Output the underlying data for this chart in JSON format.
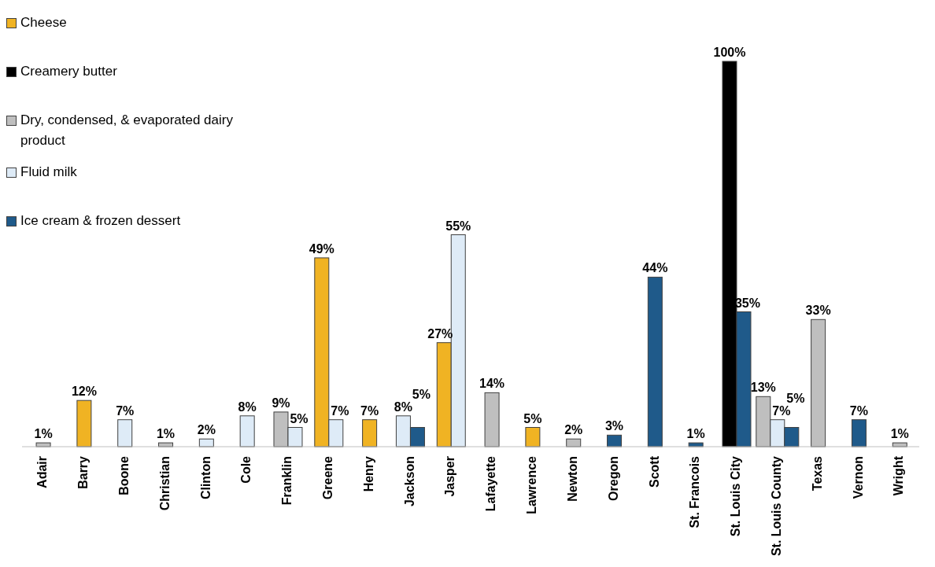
{
  "chart_data": {
    "type": "bar",
    "categories": [
      "Adair",
      "Barry",
      "Boone",
      "Christian",
      "Clinton",
      "Cole",
      "Franklin",
      "Greene",
      "Henry",
      "Jackson",
      "Jasper",
      "Lafayette",
      "Lawrence",
      "Newton",
      "Oregon",
      "Scott",
      "St. Francois",
      "St. Louis City",
      "St. Louis County",
      "Texas",
      "Vernon",
      "Wright"
    ],
    "series": [
      {
        "name": "Cheese",
        "color": "#f0b323",
        "values": [
          null,
          12,
          null,
          null,
          null,
          null,
          null,
          49,
          7,
          null,
          27,
          null,
          5,
          null,
          null,
          null,
          null,
          null,
          null,
          null,
          null,
          null
        ],
        "value_labels": [
          null,
          "12%",
          null,
          null,
          null,
          null,
          null,
          "49%",
          "7%",
          null,
          "27%",
          null,
          "5%",
          null,
          null,
          null,
          null,
          null,
          null,
          null,
          null,
          null
        ]
      },
      {
        "name": "Creamery butter",
        "color": "#000000",
        "values": [
          null,
          null,
          null,
          null,
          null,
          null,
          null,
          null,
          null,
          null,
          null,
          null,
          null,
          null,
          null,
          null,
          null,
          100,
          null,
          null,
          null,
          null
        ],
        "value_labels": [
          null,
          null,
          null,
          null,
          null,
          null,
          null,
          null,
          null,
          null,
          null,
          null,
          null,
          null,
          null,
          null,
          null,
          "100%",
          null,
          null,
          null,
          null
        ]
      },
      {
        "name": "Dry, condensed, & evaporated dairy product",
        "color": "#bfbfbf",
        "values": [
          1,
          null,
          null,
          1,
          null,
          null,
          9,
          null,
          null,
          null,
          null,
          14,
          null,
          2,
          null,
          null,
          null,
          null,
          13,
          33,
          null,
          1
        ],
        "value_labels": [
          "1%",
          null,
          null,
          "1%",
          null,
          null,
          "9%",
          null,
          null,
          null,
          null,
          "14%",
          null,
          "2%",
          null,
          null,
          null,
          null,
          "13%",
          "33%",
          null,
          "1%"
        ]
      },
      {
        "name": "Fluid milk",
        "color": "#deebf7",
        "values": [
          null,
          null,
          7,
          null,
          2,
          8,
          5,
          7,
          null,
          8,
          55,
          null,
          null,
          null,
          null,
          null,
          null,
          null,
          7,
          null,
          null,
          null
        ],
        "value_labels": [
          null,
          null,
          "7%",
          null,
          "2%",
          "8%",
          "5%",
          "7%",
          null,
          "8%",
          "55%",
          null,
          null,
          null,
          null,
          null,
          null,
          null,
          "7%",
          null,
          null,
          null
        ]
      },
      {
        "name": "Ice cream & frozen dessert",
        "color": "#1f5a8a",
        "values": [
          null,
          null,
          null,
          null,
          null,
          null,
          null,
          null,
          null,
          5,
          null,
          null,
          null,
          null,
          3,
          44,
          1,
          35,
          5,
          null,
          7,
          null
        ],
        "value_labels": [
          null,
          null,
          null,
          null,
          null,
          null,
          null,
          null,
          null,
          "5%",
          null,
          null,
          null,
          null,
          "3%",
          "44%",
          "1%",
          "35%",
          "5%",
          null,
          "7%",
          null
        ]
      }
    ],
    "legend": "top left"
  }
}
